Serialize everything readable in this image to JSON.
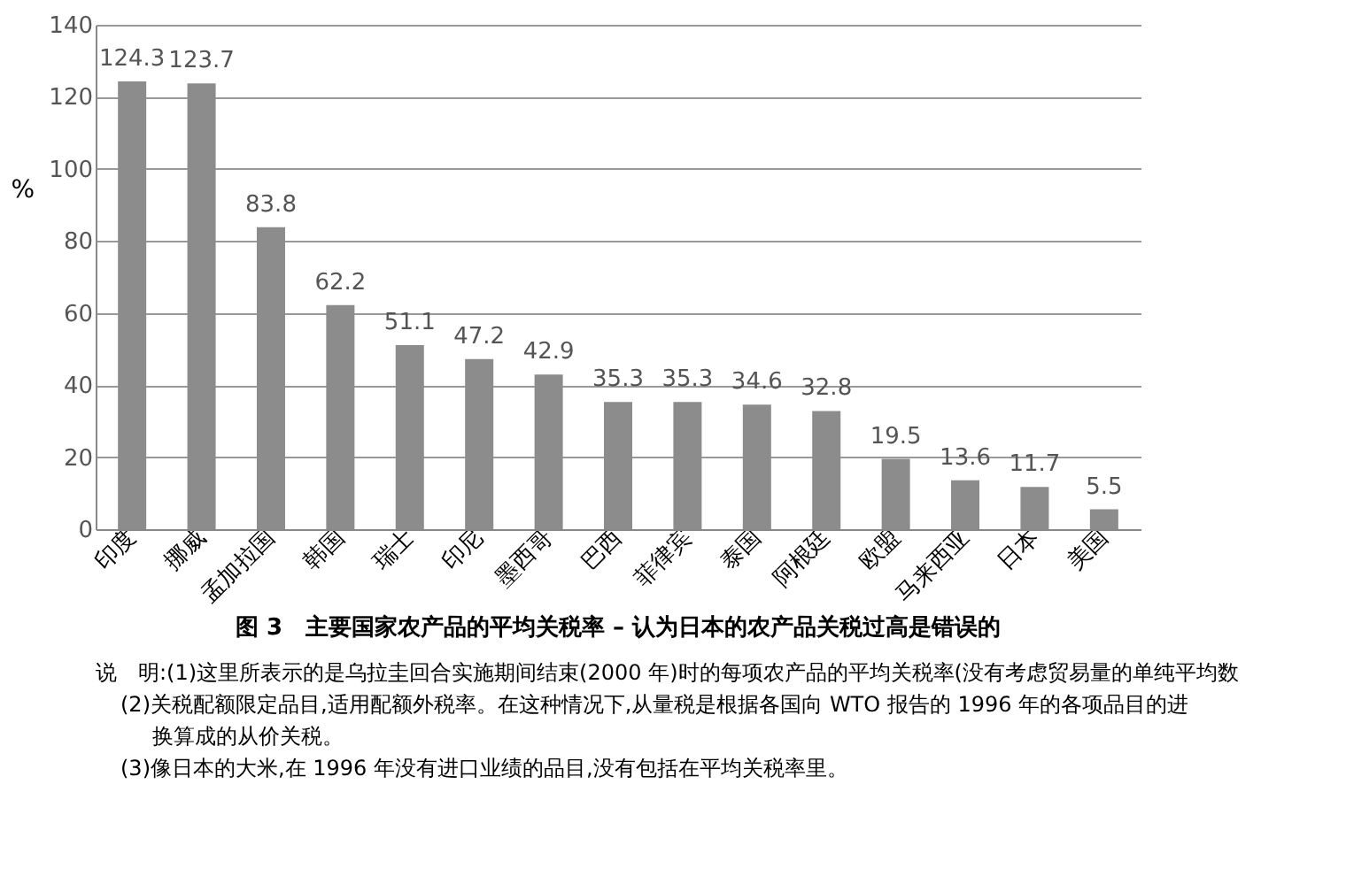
{
  "chart_data": {
    "type": "bar",
    "title": "图 3　主要国家农产品的平均关税率 – 认为日本的农产品关税过高是错误的",
    "ylabel": "%",
    "categories": [
      "印度",
      "挪威",
      "孟加拉国",
      "韩国",
      "瑞士",
      "印尼",
      "墨西哥",
      "巴西",
      "菲律宾",
      "泰国",
      "阿根廷",
      "欧盟",
      "马来西亚",
      "日本",
      "美国"
    ],
    "values": [
      124.3,
      123.7,
      83.8,
      62.2,
      51.1,
      47.2,
      42.9,
      35.3,
      35.3,
      34.6,
      32.8,
      19.5,
      13.6,
      11.7,
      5.5
    ],
    "color": "#8c8c8c",
    "ylim": [
      0,
      140
    ],
    "yticks": [
      0,
      20,
      40,
      60,
      80,
      100,
      120,
      140
    ],
    "grid": "y",
    "data_labels": true,
    "annotations": [
      "说　明:(1)这里所表示的是乌拉圭回合实施期间结束(2000 年)时的每项农产品的平均关税率(没有考虑贸易量的单纯平均数",
      "(2)关税配额限定品目,适用配额外税率。在这种情况下,从量税是根据各国向 WTO 报告的 1996 年的各项品目的进",
      "换算成的从价关税。",
      "(3)像日本的大米,在 1996 年没有进口业绩的品目,没有包括在平均关税率里。"
    ]
  }
}
